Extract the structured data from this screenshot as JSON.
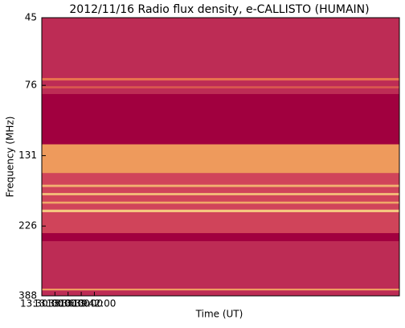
{
  "chart_data": {
    "type": "spectrogram",
    "title": "2012/11/16  Radio flux density, e-CALLISTO (HUMAIN)",
    "x_label": "Time (UT)",
    "y_label": "Frequency (MHz)",
    "xlim": [
      48600,
      53495
    ],
    "xticks": [
      {
        "value": 48600,
        "label": "13:30:00"
      },
      {
        "value": 48780,
        "label": "13:33:00"
      },
      {
        "value": 48960,
        "label": "13:36:00"
      },
      {
        "value": 49140,
        "label": "13:39:00"
      },
      {
        "value": 49320,
        "label": "13:42:00"
      }
    ],
    "ylim": [
      45,
      388
    ],
    "yticks": [
      45,
      76,
      131,
      226,
      388
    ],
    "y_log": true,
    "y_inverted": true,
    "background": "#bd2c55",
    "bands": [
      {
        "from": 71.8,
        "to": 73.2,
        "color": "#e8744e"
      },
      {
        "from": 76.5,
        "to": 77.8,
        "color": "#d9584f"
      },
      {
        "from": 81.3,
        "to": 120,
        "color": "#a1003f"
      },
      {
        "from": 120,
        "to": 150,
        "color": "#ee9a5c"
      },
      {
        "from": 150,
        "to": 238.7,
        "color": "#d0445a"
      },
      {
        "from": 164,
        "to": 167,
        "color": "#f2b070"
      },
      {
        "from": 175,
        "to": 178,
        "color": "#f5c07a"
      },
      {
        "from": 187,
        "to": 190,
        "color": "#f0a868"
      },
      {
        "from": 199,
        "to": 203,
        "color": "#f5c880"
      },
      {
        "from": 238.7,
        "to": 254,
        "color": "#a1003f"
      },
      {
        "from": 367,
        "to": 372,
        "color": "#f0a060"
      }
    ]
  }
}
